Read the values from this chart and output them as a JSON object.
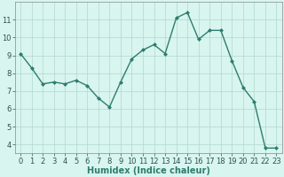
{
  "x": [
    0,
    1,
    2,
    3,
    4,
    5,
    6,
    7,
    8,
    9,
    10,
    11,
    12,
    13,
    14,
    15,
    16,
    17,
    18,
    19,
    20,
    21,
    22,
    23
  ],
  "y": [
    9.1,
    8.3,
    7.4,
    7.5,
    7.4,
    7.6,
    7.3,
    6.6,
    6.1,
    7.5,
    8.8,
    9.3,
    9.6,
    9.1,
    11.1,
    11.4,
    9.9,
    10.4,
    10.4,
    8.7,
    7.2,
    6.4,
    3.8,
    3.8
  ],
  "line_color": "#2e7d6e",
  "marker": "D",
  "marker_size": 2,
  "linewidth": 1.0,
  "bg_color": "#d8f5f0",
  "grid_color": "#b0d8d0",
  "grid_major_color": "#c8e8e0",
  "xlabel": "Humidex (Indice chaleur)",
  "xlabel_fontsize": 7,
  "tick_fontsize": 6,
  "ylim": [
    3.5,
    12.0
  ],
  "xlim": [
    -0.5,
    23.5
  ],
  "yticks": [
    4,
    5,
    6,
    7,
    8,
    9,
    10,
    11
  ],
  "xticks": [
    0,
    1,
    2,
    3,
    4,
    5,
    6,
    7,
    8,
    9,
    10,
    11,
    12,
    13,
    14,
    15,
    16,
    17,
    18,
    19,
    20,
    21,
    22,
    23
  ],
  "fig_width": 3.2,
  "fig_height": 2.0,
  "dpi": 100
}
